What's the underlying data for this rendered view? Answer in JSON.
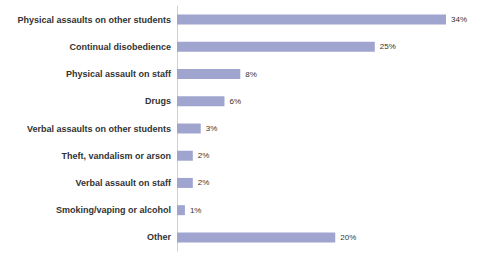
{
  "chart_data": {
    "type": "bar",
    "orientation": "horizontal",
    "categories": [
      "Physical assaults on other students",
      "Continual disobedience",
      "Physical assault on staff",
      "Drugs",
      "Verbal assaults on other students",
      "Theft, vandalism or arson",
      "Verbal assault on staff",
      "Smoking/vaping or alcohol",
      "Other"
    ],
    "values": [
      34,
      25,
      8,
      6,
      3,
      2,
      2,
      1,
      20
    ],
    "value_labels": [
      "34%",
      "25%",
      "8%",
      "6%",
      "3%",
      "2%",
      "2%",
      "1%",
      "20%"
    ],
    "color": "#a0a5cf",
    "xlim": [
      0,
      34
    ],
    "data_labels": true,
    "tick_labels": "y",
    "grid": false
  }
}
